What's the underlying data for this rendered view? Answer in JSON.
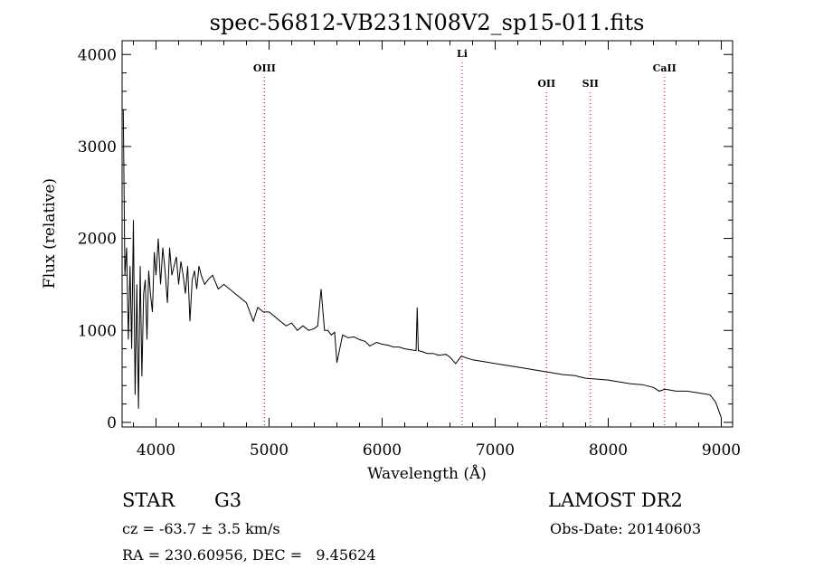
{
  "chart_data": {
    "type": "line",
    "title": "spec-56812-VB231N08V2_sp15-011.fits",
    "xlabel": "Wavelength (Å)",
    "ylabel": "Flux (relative)",
    "xlim": [
      3700,
      9100
    ],
    "ylim": [
      -50,
      4150
    ],
    "x_ticks": [
      4000,
      5000,
      6000,
      7000,
      8000,
      9000
    ],
    "y_ticks": [
      0,
      1000,
      2000,
      3000,
      4000
    ],
    "grid": false,
    "line_color": "#000000",
    "marker_color": "#cc0000",
    "lines": [
      {
        "label": "OIII",
        "wavelength": 4959
      },
      {
        "label": "Li",
        "wavelength": 6708
      },
      {
        "label": "OII",
        "wavelength": 7454
      },
      {
        "label": "SII",
        "wavelength": 7842
      },
      {
        "label": "CaII",
        "wavelength": 8498
      }
    ],
    "series": [
      {
        "x": [
          3710,
          3725,
          3740,
          3755,
          3770,
          3785,
          3800,
          3815,
          3830,
          3845,
          3860,
          3875,
          3890,
          3905,
          3920,
          3935,
          3950,
          3968,
          3985,
          4000,
          4020,
          4040,
          4060,
          4080,
          4101,
          4120,
          4140,
          4160,
          4180,
          4200,
          4220,
          4240,
          4260,
          4280,
          4300,
          4320,
          4340,
          4360,
          4380,
          4400,
          4430,
          4460,
          4500,
          4550,
          4600,
          4650,
          4700,
          4750,
          4800,
          4861,
          4900,
          4950,
          5000,
          5050,
          5100,
          5150,
          5200,
          5250,
          5300,
          5350,
          5400,
          5430,
          5460,
          5490,
          5520,
          5550,
          5580,
          5600,
          5650,
          5700,
          5750,
          5800,
          5850,
          5890,
          5950,
          6000,
          6050,
          6100,
          6150,
          6200,
          6250,
          6300,
          6310,
          6320,
          6350,
          6400,
          6450,
          6500,
          6563,
          6600,
          6650,
          6700,
          6750,
          6800,
          6900,
          7000,
          7100,
          7200,
          7300,
          7400,
          7500,
          7600,
          7700,
          7800,
          7900,
          8000,
          8100,
          8200,
          8300,
          8400,
          8450,
          8500,
          8550,
          8600,
          8700,
          8800,
          8900,
          8950,
          9000
        ],
        "y": [
          3400,
          1600,
          1900,
          900,
          1700,
          800,
          2200,
          300,
          1500,
          150,
          1700,
          500,
          1400,
          1550,
          900,
          1650,
          1400,
          1200,
          1850,
          1600,
          2000,
          1500,
          1900,
          1650,
          1300,
          1900,
          1600,
          1700,
          1800,
          1500,
          1750,
          1600,
          1400,
          1700,
          1100,
          1550,
          1650,
          1450,
          1700,
          1600,
          1500,
          1550,
          1600,
          1450,
          1500,
          1450,
          1400,
          1350,
          1300,
          1100,
          1250,
          1200,
          1200,
          1150,
          1100,
          1050,
          1080,
          1000,
          1050,
          1000,
          1020,
          1050,
          1450,
          1000,
          1000,
          950,
          980,
          650,
          950,
          920,
          930,
          900,
          880,
          830,
          870,
          850,
          840,
          820,
          820,
          800,
          790,
          780,
          1250,
          780,
          770,
          750,
          750,
          730,
          740,
          710,
          640,
          720,
          700,
          680,
          660,
          640,
          620,
          600,
          580,
          560,
          540,
          520,
          510,
          480,
          470,
          460,
          440,
          420,
          410,
          380,
          340,
          360,
          350,
          340,
          340,
          320,
          300,
          220,
          50
        ]
      }
    ]
  },
  "info": {
    "object_type": "STAR",
    "subclass": "G3",
    "survey": "LAMOST DR2",
    "cz": "cz = -63.7 ± 3.5 km/s",
    "obs_date": "Obs-Date: 20140603",
    "coords": "RA = 230.60956, DEC =   9.45624"
  }
}
